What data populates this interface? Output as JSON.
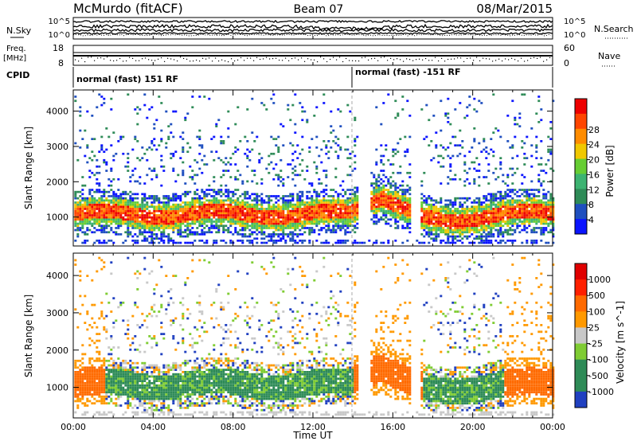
{
  "header": {
    "station": "McMurdo (fitACF)",
    "beam": "Beam 07",
    "date": "08/Mar/2015"
  },
  "noise_panel": {
    "left_label": "N.Sky",
    "right_label": "N.Search",
    "left_ticks": [
      "10^5",
      "10^0"
    ],
    "right_ticks": [
      "10^5",
      "10^0"
    ]
  },
  "freq_panel": {
    "left_label_1": "Freq.",
    "left_label_2": "[MHz]",
    "left_ticks": [
      "18",
      "8"
    ],
    "right_label": "Nave",
    "right_ticks": [
      "60",
      "0"
    ]
  },
  "cpid_panel": {
    "label": "CPID",
    "segments": [
      {
        "text": "normal (fast) 151 RF",
        "start_hour": 0
      },
      {
        "text": "normal (fast) -151 RF",
        "start_hour": 14.0
      }
    ]
  },
  "colors": {
    "power_scale": [
      "#0a14ff",
      "#1f4fbf",
      "#2e8b57",
      "#3cb371",
      "#66cd33",
      "#f0c800",
      "#ff8c00",
      "#ff4500",
      "#ee0000"
    ],
    "velocity_scale": [
      "#2040c0",
      "#2e8b57",
      "#2e8b57",
      "#7fcc33",
      "#c8c8c8",
      "#ff9900",
      "#ff6a00",
      "#ff2000",
      "#e00000"
    ]
  },
  "chart_data": [
    {
      "type": "heatmap",
      "panel": "power",
      "ylabel": "Slant Range [km]",
      "y_ticks": [
        "1000",
        "2000",
        "3000",
        "4000"
      ],
      "ylim": [
        180,
        4600
      ],
      "x_ticks": [
        "00:00",
        "04:00",
        "08:00",
        "12:00",
        "16:00",
        "20:00",
        "00:00"
      ],
      "xlim": [
        0,
        24
      ],
      "colorbar_label": "Power [dB]",
      "colorbar_ticks": [
        "4",
        "8",
        "12",
        "16",
        "20",
        "24",
        "28"
      ],
      "colorbar_range": [
        0,
        30
      ]
    },
    {
      "type": "heatmap",
      "panel": "velocity",
      "ylabel": "Slant Range [km]",
      "y_ticks": [
        "1000",
        "2000",
        "3000",
        "4000"
      ],
      "ylim": [
        180,
        4600
      ],
      "xlabel": "Time UT",
      "x_ticks": [
        "00:00",
        "04:00",
        "08:00",
        "12:00",
        "16:00",
        "20:00",
        "00:00"
      ],
      "xlim": [
        0,
        24
      ],
      "colorbar_label": "Velocity [m s^-1]",
      "colorbar_ticks": [
        "1000",
        "500",
        "100",
        "25",
        "-25",
        "-100",
        "-500",
        "-1000"
      ]
    }
  ]
}
